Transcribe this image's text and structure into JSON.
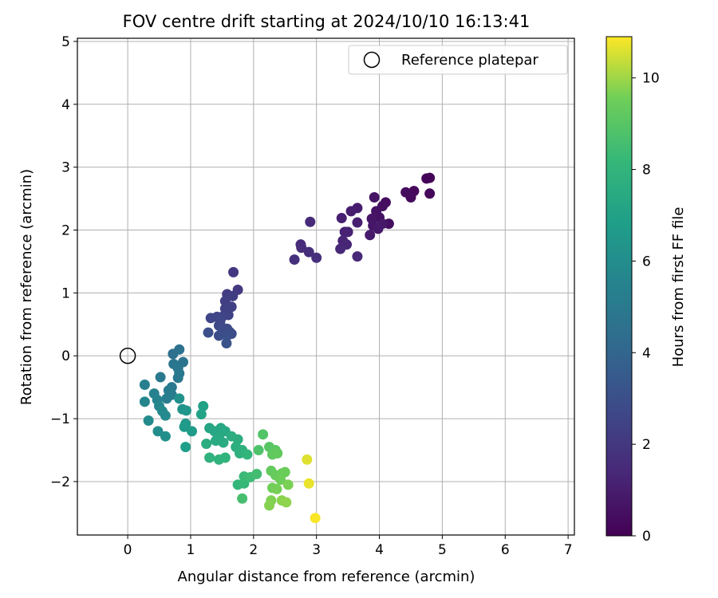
{
  "chart_data": {
    "type": "scatter",
    "title": "FOV centre drift starting at 2024/10/10 16:13:41",
    "xlabel": "Angular distance from reference (arcmin)",
    "ylabel": "Rotation from reference (arcmin)",
    "xlim": [
      -0.8,
      7.1
    ],
    "ylim": [
      -2.85,
      5.05
    ],
    "xticks": [
      0,
      1,
      2,
      3,
      4,
      5,
      6,
      7
    ],
    "yticks": [
      -2,
      -1,
      0,
      1,
      2,
      3,
      4,
      5
    ],
    "grid": true,
    "legend": {
      "placement": "top-right",
      "entries": [
        "Reference platepar"
      ]
    },
    "reference_point": {
      "x": 0,
      "y": 0
    },
    "colorbar": {
      "label": "Hours from first FF file",
      "min": 0,
      "max": 10.9,
      "ticks": [
        0,
        2,
        4,
        6,
        8,
        10
      ],
      "colormap": "viridis"
    },
    "series": [
      {
        "color_by": "hours",
        "points": [
          {
            "x": 4.8,
            "y": 2.83,
            "h": 0.1
          },
          {
            "x": 4.75,
            "y": 2.82,
            "h": 0.15
          },
          {
            "x": 4.8,
            "y": 2.58,
            "h": 0.2
          },
          {
            "x": 4.55,
            "y": 2.62,
            "h": 0.25
          },
          {
            "x": 4.5,
            "y": 2.52,
            "h": 0.3
          },
          {
            "x": 4.42,
            "y": 2.6,
            "h": 0.35
          },
          {
            "x": 4.1,
            "y": 2.44,
            "h": 0.4
          },
          {
            "x": 4.15,
            "y": 2.1,
            "h": 0.45
          },
          {
            "x": 4.05,
            "y": 2.38,
            "h": 0.5
          },
          {
            "x": 4.0,
            "y": 2.2,
            "h": 0.55
          },
          {
            "x": 3.95,
            "y": 2.3,
            "h": 0.6
          },
          {
            "x": 3.92,
            "y": 2.52,
            "h": 0.65
          },
          {
            "x": 3.88,
            "y": 2.18,
            "h": 0.7
          },
          {
            "x": 3.9,
            "y": 2.07,
            "h": 0.75
          },
          {
            "x": 4.05,
            "y": 2.1,
            "h": 0.8
          },
          {
            "x": 3.98,
            "y": 2.02,
            "h": 0.85
          },
          {
            "x": 3.85,
            "y": 1.92,
            "h": 0.9
          },
          {
            "x": 3.65,
            "y": 2.35,
            "h": 0.95
          },
          {
            "x": 3.55,
            "y": 2.3,
            "h": 1.0
          },
          {
            "x": 3.65,
            "y": 2.12,
            "h": 1.05
          },
          {
            "x": 3.4,
            "y": 2.19,
            "h": 1.1
          },
          {
            "x": 3.45,
            "y": 1.97,
            "h": 1.15
          },
          {
            "x": 3.5,
            "y": 1.97,
            "h": 1.2
          },
          {
            "x": 3.42,
            "y": 1.83,
            "h": 1.25
          },
          {
            "x": 3.48,
            "y": 1.77,
            "h": 1.3
          },
          {
            "x": 3.38,
            "y": 1.7,
            "h": 1.35
          },
          {
            "x": 3.65,
            "y": 1.58,
            "h": 1.4
          },
          {
            "x": 2.9,
            "y": 2.13,
            "h": 1.45
          },
          {
            "x": 2.75,
            "y": 1.77,
            "h": 1.5
          },
          {
            "x": 2.76,
            "y": 1.72,
            "h": 1.55
          },
          {
            "x": 2.88,
            "y": 1.65,
            "h": 1.6
          },
          {
            "x": 3.0,
            "y": 1.56,
            "h": 1.65
          },
          {
            "x": 2.65,
            "y": 1.53,
            "h": 1.7
          },
          {
            "x": 1.68,
            "y": 1.33,
            "h": 2.0
          },
          {
            "x": 1.75,
            "y": 1.05,
            "h": 2.1
          },
          {
            "x": 1.58,
            "y": 0.98,
            "h": 2.2
          },
          {
            "x": 1.67,
            "y": 0.95,
            "h": 2.25
          },
          {
            "x": 1.55,
            "y": 0.87,
            "h": 2.3
          },
          {
            "x": 1.65,
            "y": 0.78,
            "h": 2.35
          },
          {
            "x": 1.55,
            "y": 0.75,
            "h": 2.4
          },
          {
            "x": 1.6,
            "y": 0.65,
            "h": 2.45
          },
          {
            "x": 1.5,
            "y": 0.62,
            "h": 2.5
          },
          {
            "x": 1.42,
            "y": 0.62,
            "h": 2.55
          },
          {
            "x": 1.32,
            "y": 0.6,
            "h": 2.6
          },
          {
            "x": 1.47,
            "y": 0.55,
            "h": 2.65
          },
          {
            "x": 1.45,
            "y": 0.48,
            "h": 2.7
          },
          {
            "x": 1.5,
            "y": 0.45,
            "h": 2.75
          },
          {
            "x": 1.58,
            "y": 0.43,
            "h": 2.8
          },
          {
            "x": 1.62,
            "y": 0.38,
            "h": 2.85
          },
          {
            "x": 1.65,
            "y": 0.35,
            "h": 2.9
          },
          {
            "x": 1.45,
            "y": 0.32,
            "h": 2.95
          },
          {
            "x": 1.28,
            "y": 0.37,
            "h": 3.0
          },
          {
            "x": 1.58,
            "y": 0.32,
            "h": 3.05
          },
          {
            "x": 1.57,
            "y": 0.2,
            "h": 3.1
          },
          {
            "x": 0.72,
            "y": 0.03,
            "h": 4.5
          },
          {
            "x": 0.82,
            "y": 0.1,
            "h": 4.6
          },
          {
            "x": 0.88,
            "y": -0.1,
            "h": 4.7
          },
          {
            "x": 0.73,
            "y": -0.13,
            "h": 4.8
          },
          {
            "x": 0.8,
            "y": -0.2,
            "h": 4.85
          },
          {
            "x": 0.82,
            "y": -0.28,
            "h": 4.9
          },
          {
            "x": 0.8,
            "y": -0.35,
            "h": 4.95
          },
          {
            "x": 0.52,
            "y": -0.34,
            "h": 5.0
          },
          {
            "x": 0.7,
            "y": -0.5,
            "h": 5.05
          },
          {
            "x": 0.65,
            "y": -0.55,
            "h": 5.1
          },
          {
            "x": 0.7,
            "y": -0.62,
            "h": 5.15
          },
          {
            "x": 0.62,
            "y": -0.68,
            "h": 5.2
          },
          {
            "x": 0.27,
            "y": -0.46,
            "h": 5.3
          },
          {
            "x": 0.42,
            "y": -0.6,
            "h": 5.4
          },
          {
            "x": 0.47,
            "y": -0.7,
            "h": 5.5
          },
          {
            "x": 0.27,
            "y": -0.73,
            "h": 5.6
          },
          {
            "x": 0.5,
            "y": -0.8,
            "h": 5.7
          },
          {
            "x": 0.55,
            "y": -0.88,
            "h": 5.8
          },
          {
            "x": 0.6,
            "y": -0.95,
            "h": 5.85
          },
          {
            "x": 0.33,
            "y": -1.03,
            "h": 5.9
          },
          {
            "x": 0.48,
            "y": -1.2,
            "h": 6.0
          },
          {
            "x": 0.6,
            "y": -1.28,
            "h": 6.1
          },
          {
            "x": 0.82,
            "y": -0.68,
            "h": 6.2
          },
          {
            "x": 0.87,
            "y": -0.85,
            "h": 6.3
          },
          {
            "x": 0.93,
            "y": -0.87,
            "h": 6.4
          },
          {
            "x": 0.92,
            "y": -1.08,
            "h": 6.5
          },
          {
            "x": 0.9,
            "y": -1.13,
            "h": 6.6
          },
          {
            "x": 1.02,
            "y": -1.2,
            "h": 6.7
          },
          {
            "x": 0.92,
            "y": -1.45,
            "h": 6.8
          },
          {
            "x": 1.2,
            "y": -0.8,
            "h": 7.0
          },
          {
            "x": 1.17,
            "y": -0.93,
            "h": 7.1
          },
          {
            "x": 1.3,
            "y": -1.15,
            "h": 7.2
          },
          {
            "x": 1.38,
            "y": -1.2,
            "h": 7.25
          },
          {
            "x": 1.48,
            "y": -1.15,
            "h": 7.3
          },
          {
            "x": 1.55,
            "y": -1.2,
            "h": 7.35
          },
          {
            "x": 1.45,
            "y": -1.3,
            "h": 7.4
          },
          {
            "x": 1.4,
            "y": -1.35,
            "h": 7.45
          },
          {
            "x": 1.52,
            "y": -1.38,
            "h": 7.5
          },
          {
            "x": 1.25,
            "y": -1.4,
            "h": 7.55
          },
          {
            "x": 1.65,
            "y": -1.28,
            "h": 7.6
          },
          {
            "x": 1.75,
            "y": -1.33,
            "h": 7.65
          },
          {
            "x": 1.72,
            "y": -1.45,
            "h": 7.7
          },
          {
            "x": 1.82,
            "y": -1.5,
            "h": 7.75
          },
          {
            "x": 1.78,
            "y": -1.55,
            "h": 7.8
          },
          {
            "x": 1.3,
            "y": -1.62,
            "h": 7.85
          },
          {
            "x": 1.45,
            "y": -1.65,
            "h": 7.9
          },
          {
            "x": 1.55,
            "y": -1.62,
            "h": 7.95
          },
          {
            "x": 1.9,
            "y": -1.57,
            "h": 8.0
          },
          {
            "x": 1.75,
            "y": -2.05,
            "h": 8.1
          },
          {
            "x": 1.85,
            "y": -2.03,
            "h": 8.2
          },
          {
            "x": 1.85,
            "y": -1.92,
            "h": 8.3
          },
          {
            "x": 1.95,
            "y": -1.93,
            "h": 8.4
          },
          {
            "x": 2.05,
            "y": -1.88,
            "h": 8.5
          },
          {
            "x": 1.82,
            "y": -2.27,
            "h": 8.6
          },
          {
            "x": 2.08,
            "y": -1.5,
            "h": 8.8
          },
          {
            "x": 2.15,
            "y": -1.25,
            "h": 8.9
          },
          {
            "x": 2.25,
            "y": -1.45,
            "h": 9.0
          },
          {
            "x": 2.35,
            "y": -1.5,
            "h": 9.1
          },
          {
            "x": 2.3,
            "y": -1.57,
            "h": 9.2
          },
          {
            "x": 2.38,
            "y": -1.55,
            "h": 9.25
          },
          {
            "x": 2.28,
            "y": -1.83,
            "h": 9.3
          },
          {
            "x": 2.35,
            "y": -1.9,
            "h": 9.35
          },
          {
            "x": 2.45,
            "y": -1.87,
            "h": 9.4
          },
          {
            "x": 2.5,
            "y": -1.85,
            "h": 9.45
          },
          {
            "x": 2.43,
            "y": -1.97,
            "h": 9.5
          },
          {
            "x": 2.3,
            "y": -2.1,
            "h": 9.55
          },
          {
            "x": 2.37,
            "y": -2.12,
            "h": 9.6
          },
          {
            "x": 2.55,
            "y": -2.05,
            "h": 9.65
          },
          {
            "x": 2.28,
            "y": -2.3,
            "h": 9.7
          },
          {
            "x": 2.25,
            "y": -2.38,
            "h": 9.75
          },
          {
            "x": 2.45,
            "y": -2.3,
            "h": 9.8
          },
          {
            "x": 2.52,
            "y": -2.33,
            "h": 9.85
          },
          {
            "x": 2.85,
            "y": -1.65,
            "h": 10.6
          },
          {
            "x": 2.88,
            "y": -2.03,
            "h": 10.7
          },
          {
            "x": 2.98,
            "y": -2.58,
            "h": 10.85
          }
        ]
      }
    ]
  }
}
